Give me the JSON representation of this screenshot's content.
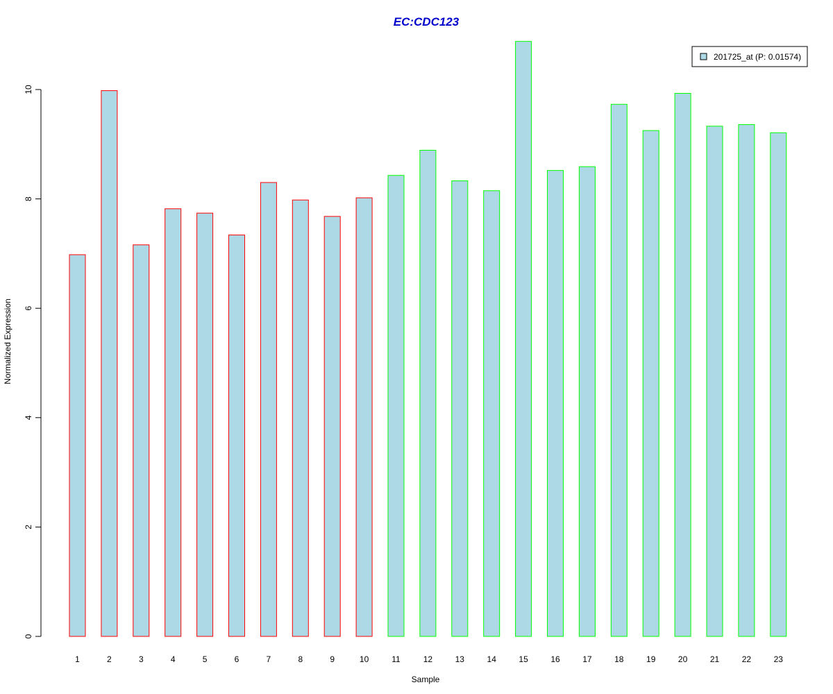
{
  "chart_data": {
    "type": "bar",
    "title": "EC:CDC123",
    "title_color": "#0000CD",
    "xlabel": "Sample",
    "ylabel": "Normalized Expression",
    "categories": [
      "1",
      "2",
      "3",
      "4",
      "5",
      "6",
      "7",
      "8",
      "9",
      "10",
      "11",
      "12",
      "13",
      "14",
      "15",
      "16",
      "17",
      "18",
      "19",
      "20",
      "21",
      "22",
      "23"
    ],
    "series": [
      {
        "name": "201725_at (P: 0.01574)",
        "values": [
          6.98,
          9.98,
          7.16,
          7.82,
          7.74,
          7.34,
          8.3,
          7.98,
          7.68,
          8.02,
          8.43,
          8.89,
          8.33,
          8.15,
          10.88,
          8.52,
          8.59,
          9.73,
          9.25,
          9.93,
          9.33,
          9.36,
          9.21
        ]
      }
    ],
    "groups": [
      {
        "samples": [
          1,
          2,
          3,
          4,
          5,
          6,
          7,
          8,
          9,
          10
        ],
        "border_color": "#FF0000"
      },
      {
        "samples": [
          11,
          12,
          13,
          14,
          15,
          16,
          17,
          18,
          19,
          20,
          21,
          22,
          23
        ],
        "border_color": "#00FF00"
      }
    ],
    "fill_color": "#ADD8E6",
    "yticks": [
      0,
      2,
      4,
      6,
      8,
      10
    ],
    "ylim": [
      0,
      10.88
    ],
    "grid": false,
    "legend_position": "top-right"
  }
}
